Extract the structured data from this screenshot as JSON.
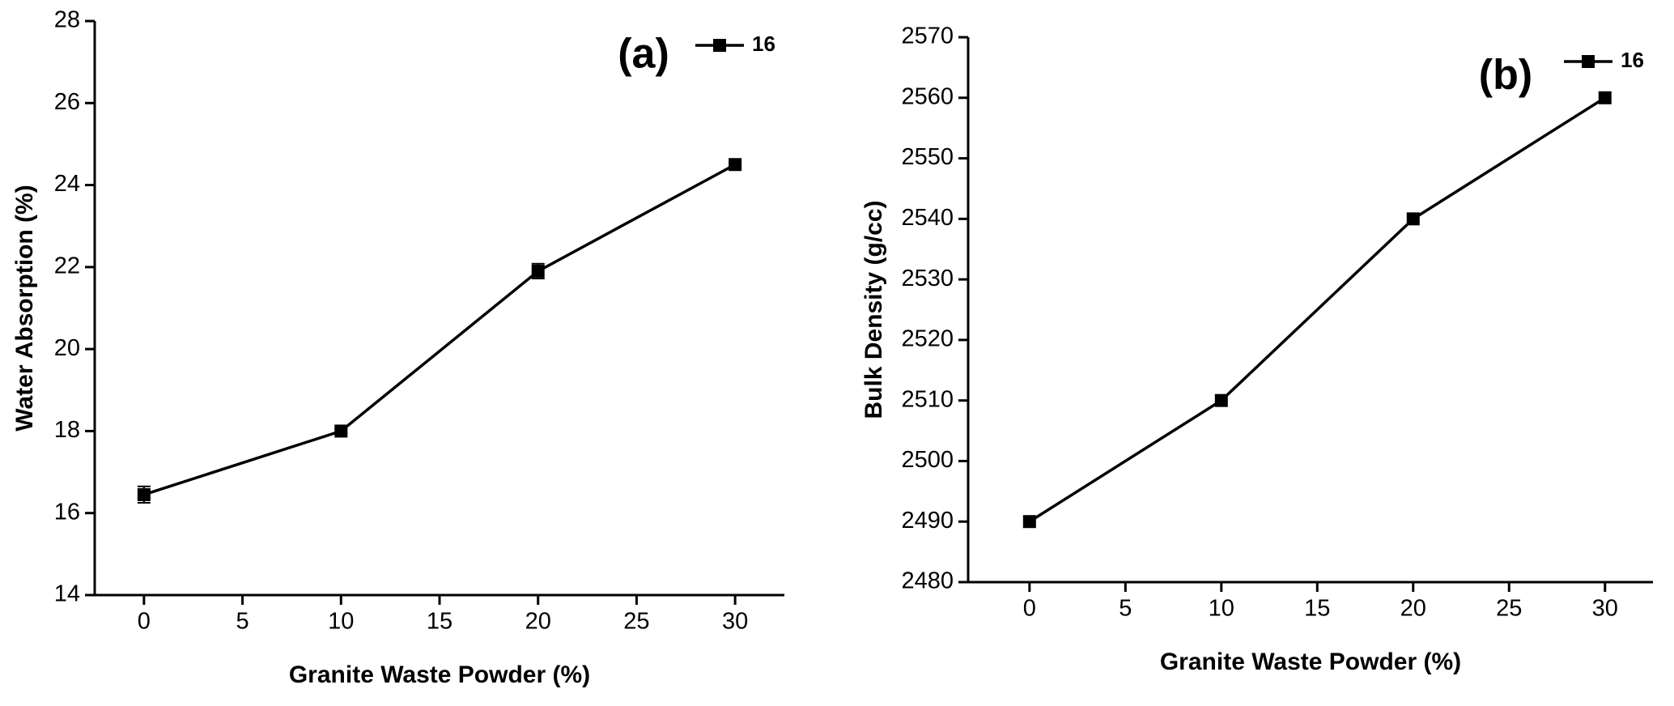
{
  "chart_data": [
    {
      "type": "line",
      "annotation": "(a)",
      "xlabel": "Granite Waste Powder (%)",
      "ylabel": "Water Absorption (%)",
      "x": [
        0,
        10,
        20,
        30
      ],
      "series": [
        {
          "name": "16",
          "color": "#000000",
          "values": [
            16.45,
            18.0,
            21.9,
            24.5
          ],
          "errors": [
            0.2,
            0.05,
            0.18,
            0.05
          ]
        }
      ],
      "xlim": [
        -2.5,
        32.5
      ],
      "xticks": [
        0,
        5,
        10,
        15,
        20,
        25,
        30
      ],
      "ylim": [
        14,
        28
      ],
      "yticks": [
        14,
        16,
        18,
        20,
        22,
        24,
        26,
        28
      ],
      "legend": "upper right",
      "annotation_color": "#1414f0"
    },
    {
      "type": "line",
      "annotation": "(b)",
      "xlabel": "Granite Waste Powder (%)",
      "ylabel": "Bulk Density (g/cc)",
      "x": [
        0,
        10,
        20,
        30
      ],
      "series": [
        {
          "name": "16",
          "color": "#000000",
          "values": [
            2490,
            2510,
            2540,
            2560
          ]
        }
      ],
      "xlim": [
        -3.2,
        32.5
      ],
      "xticks": [
        0,
        5,
        10,
        15,
        20,
        25,
        30
      ],
      "ylim": [
        2480,
        2570
      ],
      "yticks": [
        2480,
        2490,
        2500,
        2510,
        2520,
        2530,
        2540,
        2550,
        2560,
        2570
      ],
      "legend": "upper right",
      "annotation_color": "#1414f0"
    }
  ]
}
